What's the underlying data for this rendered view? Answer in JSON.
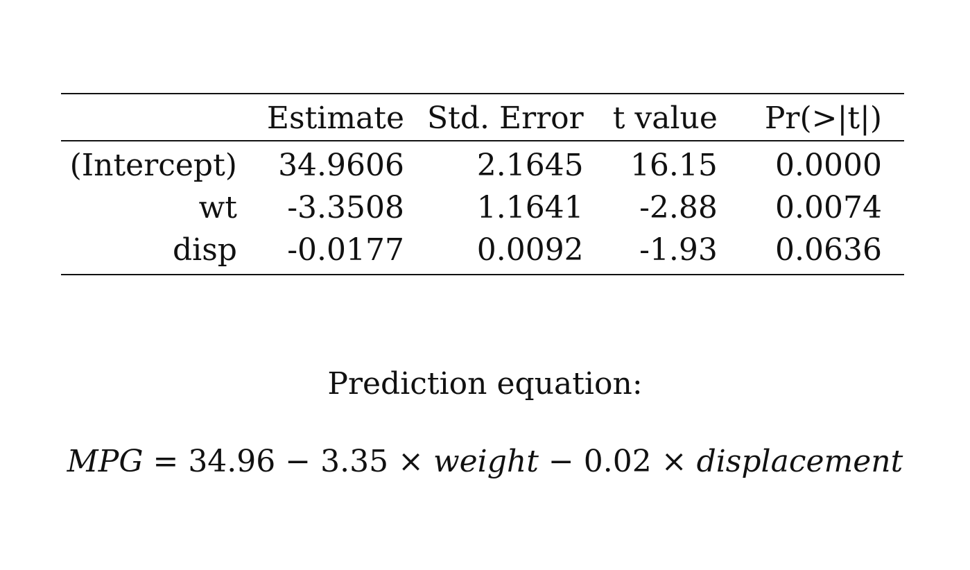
{
  "table": {
    "headers": [
      "",
      "Estimate",
      "Std. Error",
      "t value",
      "Pr(>|t|)"
    ],
    "rows": [
      {
        "term": "(Intercept)",
        "estimate": "34.9606",
        "std_error": "2.1645",
        "t_value": "16.15",
        "p_value": "0.0000"
      },
      {
        "term": "wt",
        "estimate": "-3.3508",
        "std_error": "1.1641",
        "t_value": "-2.88",
        "p_value": "0.0074"
      },
      {
        "term": "disp",
        "estimate": "-0.0177",
        "std_error": "0.0092",
        "t_value": "-1.93",
        "p_value": "0.0636"
      }
    ]
  },
  "prediction": {
    "title": "Prediction equation:",
    "lhs": "MPG",
    "equals": " = ",
    "intercept": "34.96",
    "minus1": " − ",
    "coef1": "3.35",
    "times1": " × ",
    "var1": "weight",
    "minus2": " − ",
    "coef2": "0.02",
    "times2": " × ",
    "var2": "displacement"
  }
}
